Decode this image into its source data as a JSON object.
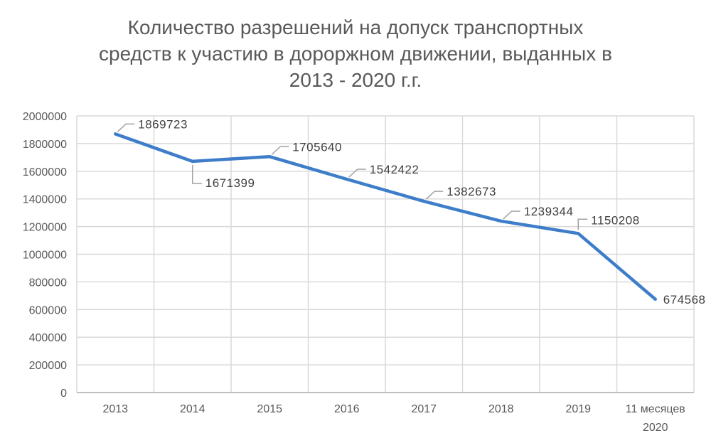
{
  "page": {
    "background": "#ffffff"
  },
  "chart_data": {
    "type": "line",
    "title": "Количество разрешений на допуск транспортных средств к участию в дороржном движении, выданных в 2013 - 2020 г.г.",
    "title_lines": [
      "Количество разрешений на допуск транспортных",
      "средств к участию в дороржном движении, выданных в",
      "2013 - 2020 г.г."
    ],
    "categories": [
      "2013",
      "2014",
      "2015",
      "2016",
      "2017",
      "2018",
      "2019",
      "11 месяцев 2020"
    ],
    "values": [
      1869723,
      1671399,
      1705640,
      1542422,
      1382673,
      1239344,
      1150208,
      674568
    ],
    "data_labels": [
      "1869723",
      "1671399",
      "1705640",
      "1542422",
      "1382673",
      "1239344",
      "1150208",
      "674568"
    ],
    "label_placements": [
      "up",
      "down",
      "up",
      "up",
      "up",
      "up",
      "vup",
      "right"
    ],
    "xlabel": "",
    "ylabel": "",
    "ylim": [
      0,
      2000000
    ],
    "y_tick_step": 200000,
    "y_tick_labels": [
      "0",
      "200000",
      "400000",
      "600000",
      "800000",
      "1000000",
      "1200000",
      "1400000",
      "1600000",
      "1800000",
      "2000000"
    ],
    "grid": true,
    "legend": "none",
    "colors": {
      "series": "#3e7dc9",
      "gridline": "#d9d9d9",
      "axis_line": "#bfbfbf",
      "tick_text": "#595959",
      "title_text": "#595959",
      "data_label_text": "#3f3f3f",
      "leader_line": "#a0a0a0"
    }
  }
}
